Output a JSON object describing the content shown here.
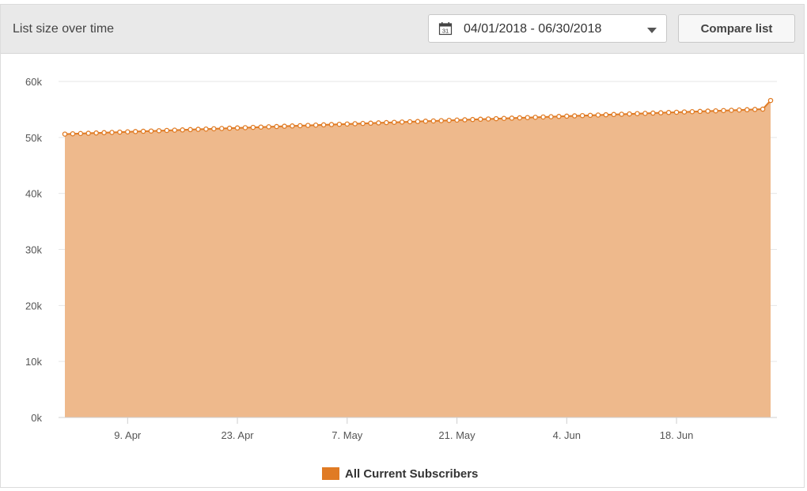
{
  "header": {
    "title": "List size over time",
    "date_range": "04/01/2018 - 06/30/2018",
    "calendar_day": "31",
    "compare_label": "Compare list"
  },
  "colors": {
    "series_line": "#e07b24",
    "series_fill": "#eeb98c",
    "grid": "#e6e6e6",
    "marker_fill": "#ffffff"
  },
  "chart_data": {
    "type": "area",
    "title": "",
    "xlabel": "",
    "ylabel": "",
    "ylim": [
      0,
      60000
    ],
    "yticks": [
      0,
      10000,
      20000,
      30000,
      40000,
      50000,
      60000
    ],
    "ytick_labels": [
      "0k",
      "10k",
      "20k",
      "30k",
      "40k",
      "50k",
      "60k"
    ],
    "xtick_dates": [
      "2018-04-09",
      "2018-04-23",
      "2018-05-07",
      "2018-05-21",
      "2018-06-04",
      "2018-06-18"
    ],
    "xtick_labels": [
      "9. Apr",
      "23. Apr",
      "7. May",
      "21. May",
      "4. Jun",
      "18. Jun"
    ],
    "grid": true,
    "legend_position": "bottom-center",
    "series": [
      {
        "name": "All Current Subscribers",
        "x_start": "2018-04-01",
        "x_end": "2018-06-30",
        "interval": "1 day",
        "values": [
          50600,
          50650,
          50700,
          50750,
          50800,
          50850,
          50900,
          50950,
          51000,
          51050,
          51100,
          51150,
          51200,
          51250,
          51300,
          51350,
          51400,
          51450,
          51500,
          51550,
          51600,
          51650,
          51700,
          51750,
          51800,
          51850,
          51900,
          51950,
          52000,
          52050,
          52100,
          52150,
          52200,
          52250,
          52300,
          52350,
          52400,
          52450,
          52500,
          52550,
          52600,
          52650,
          52700,
          52750,
          52800,
          52850,
          52900,
          52950,
          53000,
          53050,
          53100,
          53150,
          53200,
          53250,
          53300,
          53350,
          53400,
          53450,
          53500,
          53550,
          53600,
          53650,
          53700,
          53750,
          53800,
          53850,
          53900,
          53950,
          54000,
          54050,
          54100,
          54150,
          54200,
          54250,
          54300,
          54350,
          54400,
          54450,
          54500,
          54550,
          54600,
          54650,
          54700,
          54750,
          54800,
          54850,
          54900,
          54950,
          55000,
          55050,
          56600
        ]
      }
    ]
  }
}
